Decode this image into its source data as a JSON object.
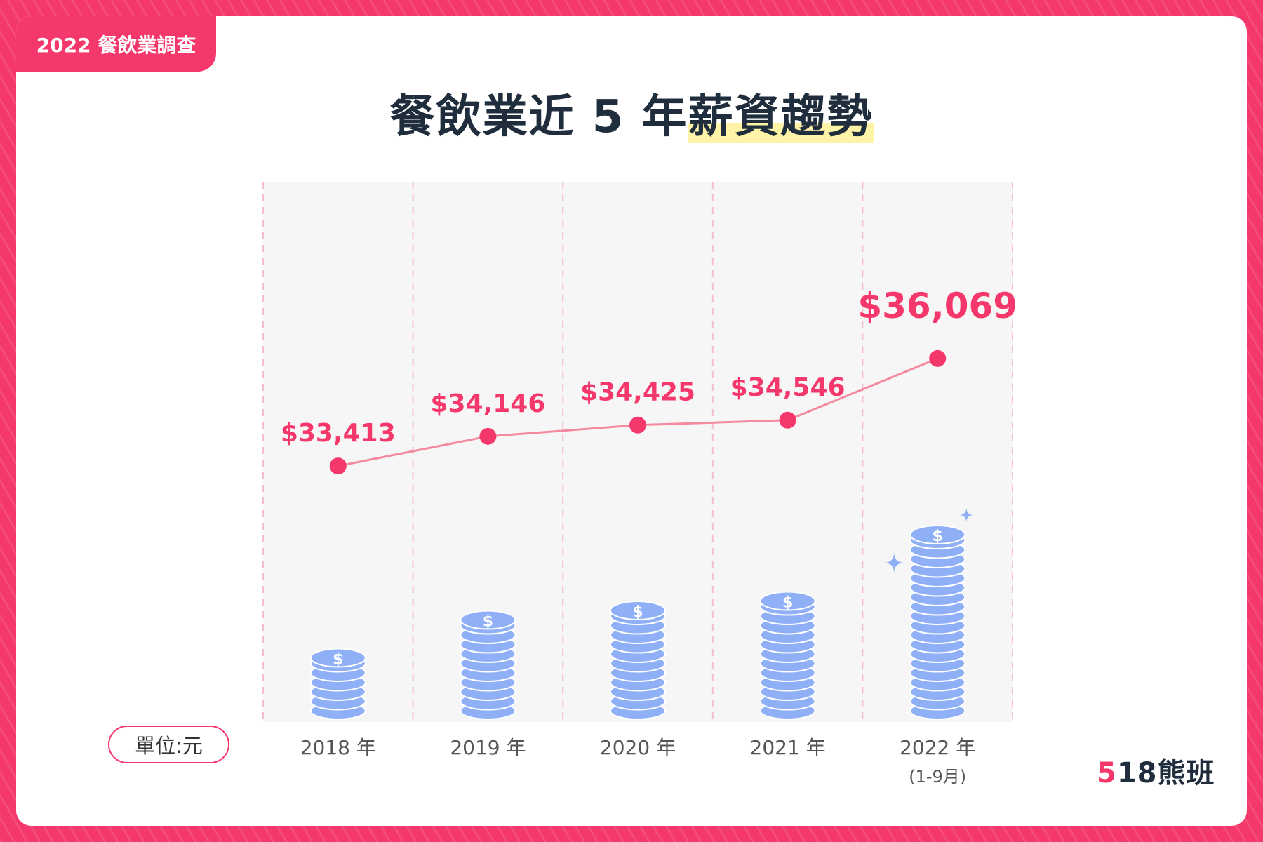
{
  "tag": "2022 餐飲業調查",
  "title": {
    "main": "餐飲業近 5 年",
    "highlight": "薪資趨勢"
  },
  "unit": "單位:元",
  "logo": {
    "accent": "5",
    "rest": "18熊班"
  },
  "colors": {
    "brand": "#f5386b",
    "coin": "#8fb0f7",
    "line": "#f4899f",
    "grid": "#f6bfcb"
  },
  "chart_data": {
    "type": "line",
    "categories": [
      "2018 年",
      "2019 年",
      "2020 年",
      "2021 年",
      "2022 年"
    ],
    "category_notes": [
      "",
      "",
      "",
      "",
      "(1-9月)"
    ],
    "values": [
      33413,
      34146,
      34425,
      34546,
      36069
    ],
    "value_labels": [
      "$33,413",
      "$34,146",
      "$34,425",
      "$34,546",
      "$36,069"
    ],
    "highlight_index": 4,
    "xlabel": "",
    "ylabel": "",
    "grid": true,
    "decoration": "coin-stacks"
  }
}
